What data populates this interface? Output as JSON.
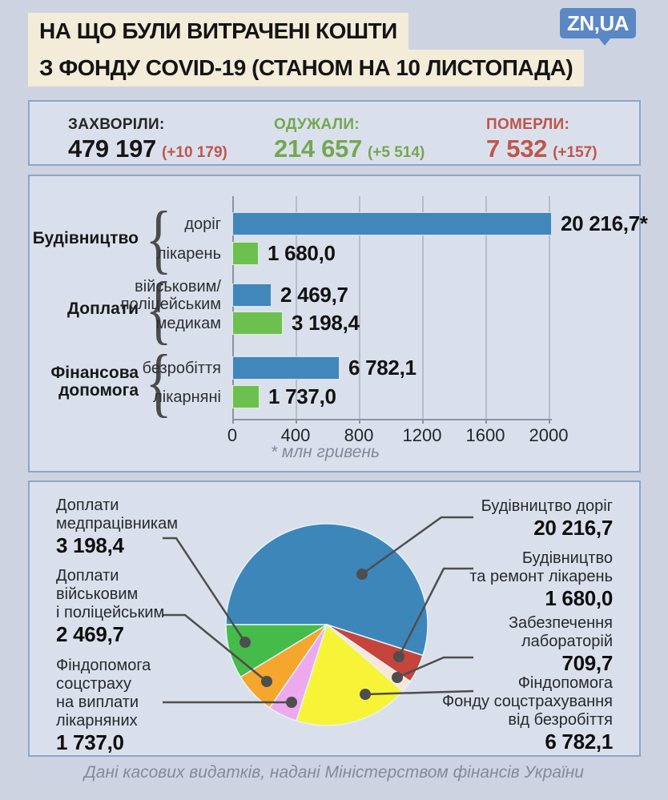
{
  "header": {
    "title_line1": "НА ЩО БУЛИ ВИТРАЧЕНІ КОШТИ",
    "title_line2": "З ФОНДУ COVID-19 (СТАНОМ НА 10 ЛИСТОПАДА)",
    "logo_text": "ZN,UA"
  },
  "stats": {
    "items": [
      {
        "label": "ЗАХВОРІЛИ:",
        "value": "479 197",
        "delta": "(+10 179)",
        "label_color": "#262626",
        "value_color": "#151515",
        "delta_color": "#c0544c"
      },
      {
        "label": "ОДУЖАЛИ:",
        "value": "214 657",
        "delta": "(+5 514)",
        "label_color": "#73a751",
        "value_color": "#73a751",
        "delta_color": "#73a751"
      },
      {
        "label": "ПОМЕРЛИ:",
        "value": "7 532",
        "delta": "(+157)",
        "label_color": "#c0544c",
        "value_color": "#c0544c",
        "delta_color": "#c0544c"
      }
    ]
  },
  "chart_data": [
    {
      "type": "bar",
      "orientation": "horizontal",
      "unit_note": "* млн гривень",
      "x_ticks": [
        0,
        400,
        800,
        1200,
        1600,
        2000
      ],
      "axis_unit_divisor": 10,
      "grid": true,
      "groups": [
        {
          "label_lines": [
            "Будівництво"
          ],
          "items": [
            {
              "label_lines": [
                "доріг"
              ],
              "value": 20216.7,
              "display": "20 216,7*",
              "color": "#4187b9"
            },
            {
              "label_lines": [
                "лікарень"
              ],
              "value": 1680.0,
              "display": "1 680,0",
              "color": "#6cc04f"
            }
          ]
        },
        {
          "label_lines": [
            "Доплати"
          ],
          "items": [
            {
              "label_lines": [
                "військовим/",
                "поліцейським"
              ],
              "value": 2469.7,
              "display": "2 469,7",
              "color": "#4187b9"
            },
            {
              "label_lines": [
                "медикам"
              ],
              "value": 3198.4,
              "display": "3 198,4",
              "color": "#6cc04f"
            }
          ]
        },
        {
          "label_lines": [
            "Фінансова",
            "допомога"
          ],
          "items": [
            {
              "label_lines": [
                "безробіття"
              ],
              "value": 6782.1,
              "display": "6 782,1",
              "color": "#4187b9"
            },
            {
              "label_lines": [
                "лікарняні"
              ],
              "value": 1737.0,
              "display": "1 737,0",
              "color": "#6cc04f"
            }
          ]
        }
      ]
    },
    {
      "type": "pie",
      "start_compass_deg": 270,
      "direction": "clockwise",
      "slices": [
        {
          "label": "Будівництво доріг",
          "value": 20216.7,
          "display": "20 216,7",
          "color": "#3d86ba"
        },
        {
          "label": "Будівництво та ремонт лікарень",
          "value": 1680.0,
          "display": "1 680,0",
          "color": "#c5443c"
        },
        {
          "label": "Забезпечення лабораторій",
          "value": 709.7,
          "display": "709,7",
          "color": "#f8e6d9"
        },
        {
          "label": "Фіндопомога Фонду соцстрахування від безробіття",
          "value": 6782.1,
          "display": "6 782,1",
          "color": "#f7f437"
        },
        {
          "label": "Фіндопомога соцстраху на виплати лікарняних",
          "value": 1737.0,
          "display": "1 737,0",
          "color": "#eea9ee"
        },
        {
          "label": "Доплати військовим і поліцейським",
          "value": 2469.7,
          "display": "2 469,7",
          "color": "#f5a62c"
        },
        {
          "label": "Доплати медпрацівникам",
          "value": 3198.4,
          "display": "3 198,4",
          "color": "#45bb4a"
        }
      ],
      "callouts": {
        "left": [
          {
            "lines": [
              "Доплати",
              "медпрацівникам"
            ],
            "number": "3 198,4",
            "slice_index": 6
          },
          {
            "lines": [
              "Доплати",
              "військовим",
              "і поліцейським"
            ],
            "number": "2 469,7",
            "slice_index": 5
          },
          {
            "lines": [
              "Фіндопомога",
              "соцстраху",
              "на виплати",
              "лікарняних"
            ],
            "number": "1 737,0",
            "slice_index": 4
          }
        ],
        "right": [
          {
            "lines": [
              "Будівництво доріг"
            ],
            "number": "20 216,7",
            "slice_index": 0
          },
          {
            "lines": [
              "Будівництво",
              "та ремонт лікарень"
            ],
            "number": "1 680,0",
            "slice_index": 1
          },
          {
            "lines": [
              "Забезпечення",
              "лабораторій"
            ],
            "number": "709,7",
            "slice_index": 2
          },
          {
            "lines": [
              "Фіндопомога",
              "Фонду соцстрахування",
              "від безробіття"
            ],
            "number": "6 782,1",
            "slice_index": 3
          }
        ]
      }
    }
  ],
  "footer": {
    "source": "Дані касових видатків, надані Міністерством фінансів України"
  }
}
